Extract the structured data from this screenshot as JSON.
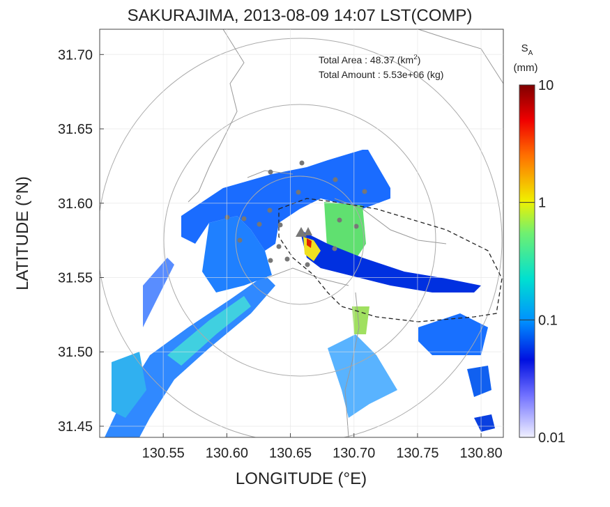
{
  "chart_data": {
    "type": "radar-map",
    "title": "SAKURAJIMA, 2013-08-09 14:07 LST(COMP)",
    "x_label": "LONGITUDE (°E)",
    "y_label": "LATITUDE (°N)",
    "xlim": [
      130.5,
      130.8175
    ],
    "ylim": [
      31.4425,
      31.717
    ],
    "xticks": [
      130.55,
      {
        "value": 130.6,
        "label": "130.60"
      },
      130.65,
      {
        "value": 130.7,
        "label": "130.70"
      },
      130.75,
      {
        "value": 130.8,
        "label": "130.80"
      }
    ],
    "yticks": [
      31.45,
      {
        "value": 31.5,
        "label": "31.50"
      },
      31.55,
      {
        "value": 31.6,
        "label": "31.60"
      },
      31.65,
      {
        "value": 31.7,
        "label": "31.70"
      }
    ],
    "annotations": [
      {
        "text": "Total Area   : 48.37 (km",
        "sup": "2",
        "tail": ")"
      },
      {
        "text": "Total Amount : 5.53e+06 (kg)"
      }
    ],
    "colorbar": {
      "symbol": "S",
      "subscript": "A",
      "unit": "(mm)",
      "log_scale": true,
      "lim": [
        0.01,
        10
      ],
      "ticks": [
        0.01,
        0.1,
        1,
        10
      ]
    }
  }
}
